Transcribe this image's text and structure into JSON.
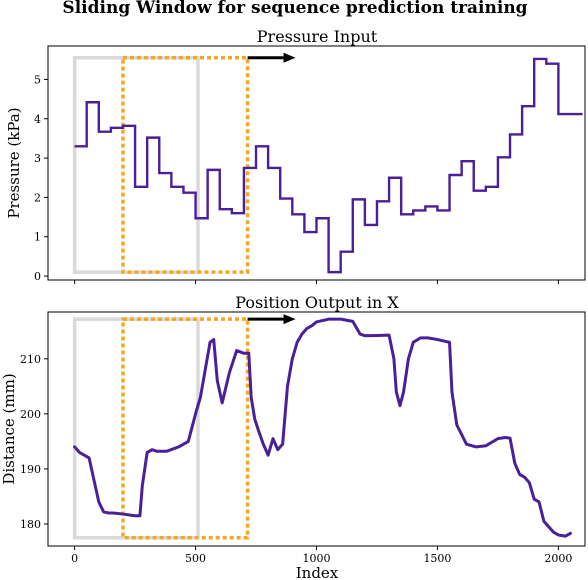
{
  "figure": {
    "title": "Sliding Window for sequence prediction training",
    "xlabel": "Index",
    "colors": {
      "series": "#4a1f9a",
      "window_initial": "#d9d9d9",
      "window_shifted": "#f5a623",
      "arrow": "#000000"
    }
  },
  "chart_data": [
    {
      "type": "line",
      "step": true,
      "title": "Pressure Input",
      "xlabel": "",
      "ylabel": "Pressure (kPa)",
      "xlim": [
        -110,
        2110
      ],
      "ylim": [
        -0.1,
        5.85
      ],
      "xticks": [
        0,
        500,
        1000,
        1500,
        2000
      ],
      "yticks": [
        0,
        1,
        2,
        3,
        4,
        5
      ],
      "xtick_labels_visible": false,
      "series": [
        {
          "x": [
            0,
            50,
            100,
            150,
            200,
            250,
            300,
            350,
            400,
            450,
            500,
            550,
            600,
            650,
            700,
            750,
            800,
            850,
            900,
            950,
            1000,
            1050,
            1100,
            1150,
            1200,
            1250,
            1300,
            1350,
            1400,
            1450,
            1500,
            1550,
            1600,
            1650,
            1700,
            1750,
            1800,
            1850,
            1900,
            1950,
            2000,
            2050
          ],
          "values": [
            3.3,
            4.42,
            3.67,
            3.77,
            3.82,
            2.27,
            3.52,
            2.62,
            2.27,
            2.12,
            1.47,
            2.7,
            1.7,
            1.6,
            2.75,
            3.3,
            2.75,
            1.97,
            1.57,
            1.12,
            1.47,
            0.1,
            0.62,
            1.95,
            1.3,
            1.9,
            2.5,
            1.57,
            1.67,
            1.77,
            1.67,
            2.57,
            2.92,
            2.17,
            2.27,
            3.02,
            3.6,
            4.32,
            5.52,
            5.4,
            4.12,
            4.12
          ]
        }
      ],
      "windows": [
        {
          "x0": 0,
          "x1": 510,
          "y0": 0.1,
          "y1": 5.55
        },
        {
          "x0": 200,
          "x1": 715,
          "y0": 0.1,
          "y1": 5.55
        }
      ],
      "arrow": {
        "x0": 715,
        "x1": 905,
        "y": 5.55
      }
    },
    {
      "type": "line",
      "title": "Position Output in X",
      "xlabel": "Index",
      "ylabel": "Distance (mm)",
      "xlim": [
        -110,
        2110
      ],
      "ylim": [
        176,
        218.5
      ],
      "xticks": [
        0,
        500,
        1000,
        1500,
        2000
      ],
      "xtick_labels": [
        "0",
        "500",
        "1000",
        "1500",
        "2000"
      ],
      "yticks": [
        180,
        190,
        200,
        210
      ],
      "series": [
        {
          "x": [
            0,
            20,
            40,
            60,
            80,
            100,
            120,
            140,
            160,
            200,
            250,
            270,
            280,
            300,
            320,
            340,
            380,
            430,
            470,
            500,
            520,
            540,
            560,
            575,
            590,
            610,
            640,
            670,
            700,
            720,
            730,
            745,
            760,
            780,
            800,
            820,
            840,
            860,
            880,
            900,
            920,
            940,
            960,
            980,
            1000,
            1050,
            1100,
            1150,
            1180,
            1200,
            1230,
            1300,
            1320,
            1330,
            1345,
            1360,
            1380,
            1400,
            1430,
            1460,
            1500,
            1550,
            1560,
            1580,
            1620,
            1660,
            1700,
            1750,
            1780,
            1800,
            1820,
            1840,
            1860,
            1880,
            1900,
            1920,
            1940,
            1960,
            1980,
            2000,
            2030,
            2050
          ],
          "values": [
            194,
            193,
            192.5,
            192,
            188,
            184,
            182.2,
            182,
            182,
            181.8,
            181.5,
            181.5,
            187,
            193,
            193.5,
            193.2,
            193.2,
            194,
            195,
            200,
            203,
            208,
            213,
            213.5,
            206,
            202,
            207.5,
            211.5,
            211,
            211,
            203,
            199,
            197,
            194.5,
            192.5,
            195.5,
            193.5,
            194.5,
            205,
            210,
            213,
            214.5,
            215.5,
            216,
            216.7,
            217.2,
            217.2,
            216.8,
            214.5,
            214.2,
            214.2,
            214.3,
            210,
            204,
            201.5,
            204,
            210,
            213,
            213.8,
            213.8,
            213.5,
            213,
            204,
            198,
            194.5,
            194,
            194.2,
            195.5,
            195.7,
            195.6,
            191,
            189,
            188.5,
            187.5,
            184.5,
            184,
            180.5,
            179.5,
            178.5,
            178,
            177.8,
            178.3
          ]
        }
      ],
      "windows": [
        {
          "x0": 0,
          "x1": 510,
          "y0": 177.5,
          "y1": 217.2
        },
        {
          "x0": 200,
          "x1": 715,
          "y0": 177.5,
          "y1": 217.2
        }
      ],
      "arrow": {
        "x0": 715,
        "x1": 905,
        "y": 217.2
      }
    }
  ]
}
